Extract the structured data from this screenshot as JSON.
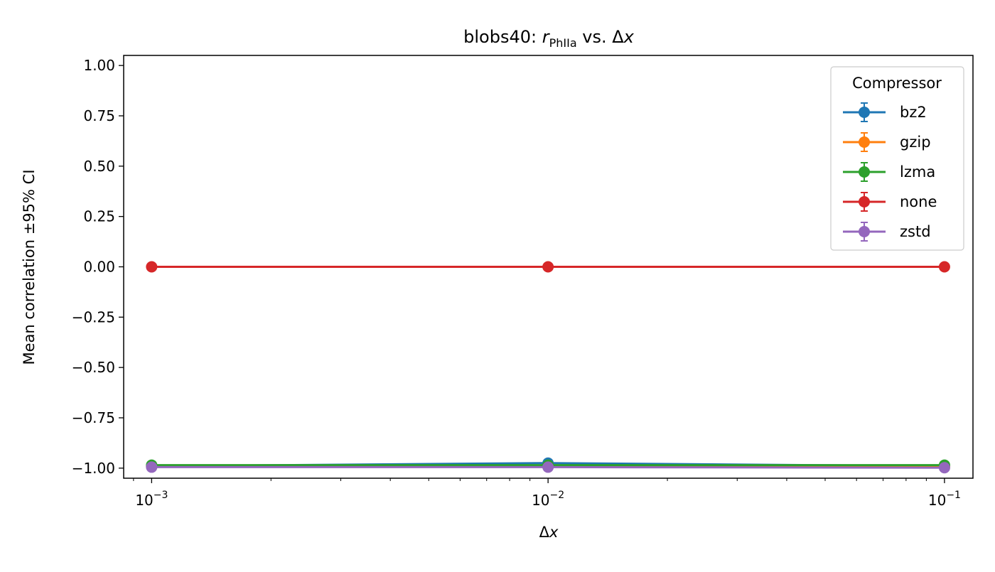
{
  "chart_data": {
    "type": "line",
    "title_prefix": "blobs40: ",
    "title_symbol": "r",
    "title_subscript": "PhIIa",
    "title_suffix": " vs. ",
    "title_delta": "Δ",
    "title_var": "x",
    "xlabel_delta": "Δ",
    "xlabel_var": "x",
    "ylabel": "Mean correlation ±95% CI",
    "xscale": "log",
    "xlim": [
      0.00085,
      0.118
    ],
    "ylim": [
      -1.05,
      1.05
    ],
    "x": [
      0.001,
      0.01,
      0.1
    ],
    "x_ticks": [
      {
        "value": 0.001,
        "base": "10",
        "exp": "−3"
      },
      {
        "value": 0.01,
        "base": "10",
        "exp": "−2"
      },
      {
        "value": 0.1,
        "base": "10",
        "exp": "−1"
      }
    ],
    "y_ticks": [
      {
        "value": 1.0,
        "label": "1.00"
      },
      {
        "value": 0.75,
        "label": "0.75"
      },
      {
        "value": 0.5,
        "label": "0.50"
      },
      {
        "value": 0.25,
        "label": "0.25"
      },
      {
        "value": 0.0,
        "label": "0.00"
      },
      {
        "value": -0.25,
        "label": "−0.25"
      },
      {
        "value": -0.5,
        "label": "−0.50"
      },
      {
        "value": -0.75,
        "label": "−0.75"
      },
      {
        "value": -1.0,
        "label": "−1.00"
      }
    ],
    "legend_title": "Compressor",
    "legend_position": "upper right",
    "grid": false,
    "series": [
      {
        "name": "bz2",
        "color": "#1f77b4",
        "values": [
          -0.99,
          -0.975,
          -0.99
        ]
      },
      {
        "name": "gzip",
        "color": "#ff7f0e",
        "values": [
          -0.992,
          -0.99,
          -0.993
        ]
      },
      {
        "name": "lzma",
        "color": "#2ca02c",
        "values": [
          -0.985,
          -0.985,
          -0.985
        ]
      },
      {
        "name": "none",
        "color": "#d62728",
        "values": [
          0.0,
          0.0,
          0.0
        ]
      },
      {
        "name": "zstd",
        "color": "#9467bd",
        "values": [
          -0.995,
          -0.995,
          -0.998
        ]
      }
    ]
  }
}
